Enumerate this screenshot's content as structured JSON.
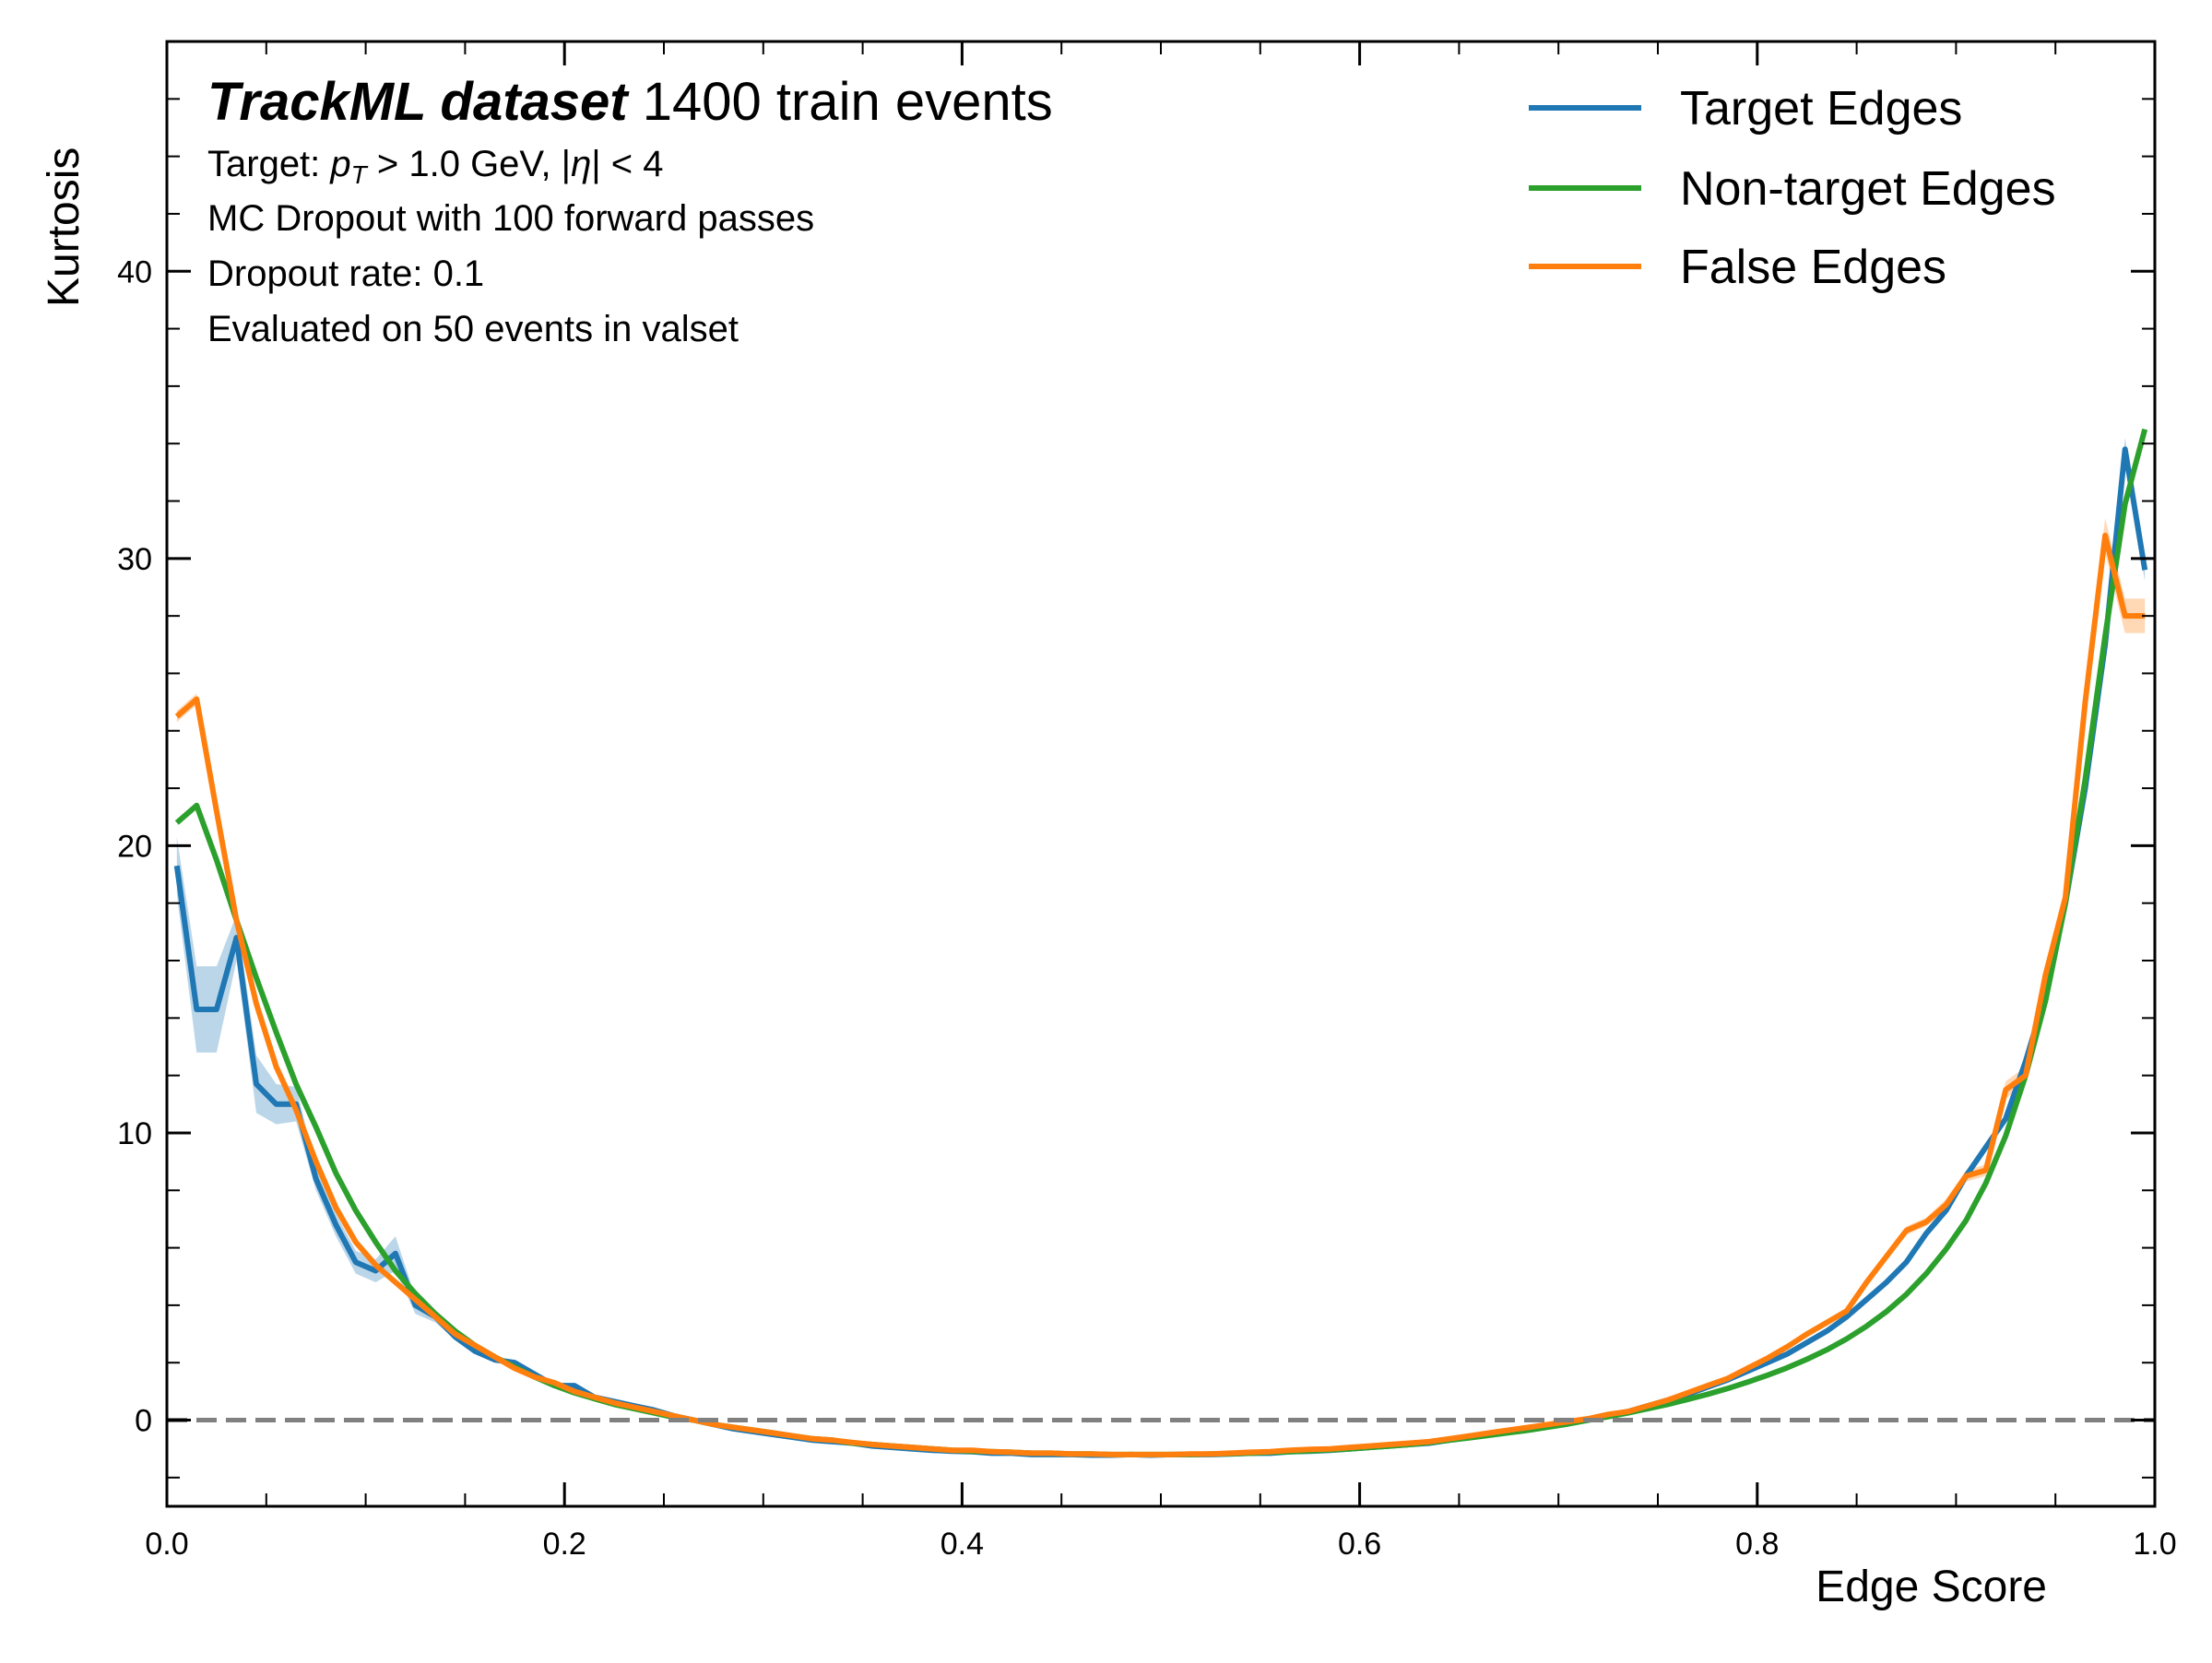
{
  "chart_data": {
    "type": "line",
    "xlabel": "Edge Score",
    "ylabel": "Kurtosis",
    "xlim": [
      0.0,
      1.0
    ],
    "ylim": [
      -3,
      48
    ],
    "x_ticks": [
      "0.0",
      "0.2",
      "0.4",
      "0.6",
      "0.8",
      "1.0"
    ],
    "x_tick_values": [
      0.0,
      0.2,
      0.4,
      0.6,
      0.8,
      1.0
    ],
    "y_ticks": [
      "0",
      "10",
      "20",
      "30",
      "40"
    ],
    "y_tick_values": [
      0,
      10,
      20,
      30,
      40
    ],
    "grid": false,
    "legend_position": "top-right",
    "annotation": {
      "title_bold": "TrackML dataset",
      "title_rest": " 1400 train events",
      "line1_prefix": "Target: ",
      "line1_p": "p",
      "line1_sub": "T",
      "line1_rest": " > 1.0 GeV, |",
      "line1_eta": "η",
      "line1_end": "| < 4",
      "line2": "MC Dropout with 100 forward passes",
      "line3": "Dropout rate: 0.1",
      "line4": "Evaluated on 50 events in valset"
    },
    "reference_line": {
      "y": 0,
      "style": "dashed",
      "color": "#808080"
    },
    "series": [
      {
        "name": "Target Edges",
        "color": "#1f77b4",
        "band_color": "#1f77b4",
        "x": [
          0.005,
          0.015,
          0.025,
          0.035,
          0.045,
          0.055,
          0.065,
          0.075,
          0.085,
          0.095,
          0.105,
          0.115,
          0.125,
          0.135,
          0.145,
          0.155,
          0.165,
          0.175,
          0.185,
          0.195,
          0.205,
          0.215,
          0.225,
          0.235,
          0.245,
          0.255,
          0.265,
          0.275,
          0.285,
          0.295,
          0.305,
          0.315,
          0.325,
          0.335,
          0.345,
          0.355,
          0.365,
          0.375,
          0.385,
          0.395,
          0.405,
          0.415,
          0.425,
          0.435,
          0.445,
          0.455,
          0.465,
          0.475,
          0.485,
          0.495,
          0.505,
          0.515,
          0.525,
          0.535,
          0.545,
          0.555,
          0.565,
          0.575,
          0.585,
          0.595,
          0.605,
          0.615,
          0.625,
          0.635,
          0.645,
          0.655,
          0.665,
          0.675,
          0.685,
          0.695,
          0.705,
          0.715,
          0.725,
          0.735,
          0.745,
          0.755,
          0.765,
          0.775,
          0.785,
          0.795,
          0.805,
          0.815,
          0.825,
          0.835,
          0.845,
          0.855,
          0.865,
          0.875,
          0.885,
          0.895,
          0.905,
          0.915,
          0.925,
          0.935,
          0.945,
          0.955,
          0.965,
          0.975,
          0.985,
          0.995
        ],
        "y": [
          19.3,
          14.3,
          14.3,
          16.8,
          11.7,
          11.0,
          11.0,
          8.4,
          6.8,
          5.5,
          5.2,
          5.8,
          4.0,
          3.6,
          2.9,
          2.4,
          2.1,
          2.0,
          1.6,
          1.2,
          1.2,
          0.8,
          0.65,
          0.5,
          0.35,
          0.15,
          0.0,
          -0.15,
          -0.3,
          -0.4,
          -0.5,
          -0.6,
          -0.7,
          -0.75,
          -0.8,
          -0.9,
          -0.95,
          -1.0,
          -1.05,
          -1.08,
          -1.1,
          -1.15,
          -1.15,
          -1.2,
          -1.2,
          -1.2,
          -1.22,
          -1.22,
          -1.2,
          -1.22,
          -1.2,
          -1.2,
          -1.2,
          -1.18,
          -1.15,
          -1.15,
          -1.1,
          -1.08,
          -1.05,
          -1.0,
          -0.95,
          -0.9,
          -0.85,
          -0.8,
          -0.7,
          -0.6,
          -0.5,
          -0.4,
          -0.3,
          -0.2,
          -0.1,
          0.0,
          0.15,
          0.3,
          0.5,
          0.7,
          0.9,
          1.15,
          1.4,
          1.7,
          2.0,
          2.3,
          2.7,
          3.1,
          3.6,
          4.2,
          4.8,
          5.5,
          6.5,
          7.3,
          8.5,
          9.5,
          10.5,
          12.5,
          14.8,
          18.0,
          22.0,
          27.0,
          33.8,
          29.6
        ],
        "err": [
          1.0,
          1.5,
          1.5,
          0.8,
          1.0,
          0.7,
          0.6,
          0.4,
          0.4,
          0.4,
          0.4,
          0.6,
          0.3,
          0.2,
          0.1,
          0.1,
          0.1,
          0.1,
          0.1,
          0.05,
          0.05,
          0.05,
          0.05,
          0.05,
          0.05,
          0.05,
          0.05,
          0.05,
          0.05,
          0.05,
          0.05,
          0.05,
          0.05,
          0.05,
          0.05,
          0.05,
          0.05,
          0.05,
          0.05,
          0.05,
          0.05,
          0.05,
          0.05,
          0.05,
          0.05,
          0.05,
          0.05,
          0.05,
          0.05,
          0.05,
          0.05,
          0.05,
          0.05,
          0.05,
          0.05,
          0.05,
          0.05,
          0.05,
          0.05,
          0.05,
          0.05,
          0.05,
          0.05,
          0.05,
          0.05,
          0.05,
          0.05,
          0.05,
          0.05,
          0.05,
          0.05,
          0.05,
          0.05,
          0.05,
          0.05,
          0.05,
          0.05,
          0.05,
          0.05,
          0.05,
          0.05,
          0.05,
          0.05,
          0.05,
          0.05,
          0.05,
          0.05,
          0.05,
          0.05,
          0.05,
          0.05,
          0.1,
          0.1,
          0.1,
          0.1,
          0.15,
          0.2,
          0.3,
          0.4,
          0.4
        ]
      },
      {
        "name": "Non-target Edges",
        "color": "#2ca02c",
        "x": [
          0.005,
          0.015,
          0.025,
          0.035,
          0.045,
          0.055,
          0.065,
          0.075,
          0.085,
          0.095,
          0.105,
          0.115,
          0.125,
          0.135,
          0.145,
          0.155,
          0.165,
          0.175,
          0.185,
          0.195,
          0.205,
          0.215,
          0.225,
          0.235,
          0.245,
          0.255,
          0.265,
          0.275,
          0.285,
          0.295,
          0.305,
          0.315,
          0.325,
          0.335,
          0.345,
          0.355,
          0.365,
          0.375,
          0.385,
          0.395,
          0.405,
          0.415,
          0.425,
          0.435,
          0.445,
          0.455,
          0.465,
          0.475,
          0.485,
          0.495,
          0.505,
          0.515,
          0.525,
          0.535,
          0.545,
          0.555,
          0.565,
          0.575,
          0.585,
          0.595,
          0.605,
          0.615,
          0.625,
          0.635,
          0.645,
          0.655,
          0.665,
          0.675,
          0.685,
          0.695,
          0.705,
          0.715,
          0.725,
          0.735,
          0.745,
          0.755,
          0.765,
          0.775,
          0.785,
          0.795,
          0.805,
          0.815,
          0.825,
          0.835,
          0.845,
          0.855,
          0.865,
          0.875,
          0.885,
          0.895,
          0.905,
          0.915,
          0.925,
          0.935,
          0.945,
          0.955,
          0.965,
          0.975,
          0.985,
          0.995
        ],
        "y": [
          20.8,
          21.4,
          19.5,
          17.4,
          15.4,
          13.5,
          11.7,
          10.2,
          8.6,
          7.3,
          6.2,
          5.2,
          4.4,
          3.7,
          3.1,
          2.6,
          2.2,
          1.85,
          1.5,
          1.2,
          0.95,
          0.75,
          0.55,
          0.4,
          0.25,
          0.1,
          0.0,
          -0.15,
          -0.25,
          -0.35,
          -0.45,
          -0.55,
          -0.65,
          -0.7,
          -0.8,
          -0.85,
          -0.9,
          -0.95,
          -1.0,
          -1.05,
          -1.08,
          -1.1,
          -1.12,
          -1.15,
          -1.15,
          -1.18,
          -1.18,
          -1.2,
          -1.2,
          -1.2,
          -1.2,
          -1.2,
          -1.18,
          -1.17,
          -1.15,
          -1.12,
          -1.1,
          -1.07,
          -1.04,
          -1.0,
          -0.95,
          -0.9,
          -0.85,
          -0.78,
          -0.7,
          -0.62,
          -0.53,
          -0.44,
          -0.35,
          -0.24,
          -0.13,
          0.0,
          0.12,
          0.25,
          0.4,
          0.55,
          0.72,
          0.9,
          1.1,
          1.32,
          1.56,
          1.82,
          2.12,
          2.45,
          2.83,
          3.27,
          3.78,
          4.38,
          5.1,
          5.95,
          6.95,
          8.25,
          9.9,
          12.0,
          14.6,
          18.0,
          22.3,
          27.3,
          31.9,
          34.5
        ]
      },
      {
        "name": "False Edges",
        "color": "#ff7f0e",
        "band_color": "#ff7f0e",
        "x": [
          0.005,
          0.015,
          0.025,
          0.035,
          0.045,
          0.055,
          0.065,
          0.075,
          0.085,
          0.095,
          0.105,
          0.115,
          0.125,
          0.135,
          0.145,
          0.155,
          0.165,
          0.175,
          0.185,
          0.195,
          0.205,
          0.215,
          0.225,
          0.235,
          0.245,
          0.255,
          0.265,
          0.275,
          0.285,
          0.295,
          0.305,
          0.315,
          0.325,
          0.335,
          0.345,
          0.355,
          0.365,
          0.375,
          0.385,
          0.395,
          0.405,
          0.415,
          0.425,
          0.435,
          0.445,
          0.455,
          0.465,
          0.475,
          0.485,
          0.495,
          0.505,
          0.515,
          0.525,
          0.535,
          0.545,
          0.555,
          0.565,
          0.575,
          0.585,
          0.595,
          0.605,
          0.615,
          0.625,
          0.635,
          0.645,
          0.655,
          0.665,
          0.675,
          0.685,
          0.695,
          0.705,
          0.715,
          0.725,
          0.735,
          0.745,
          0.755,
          0.765,
          0.775,
          0.785,
          0.795,
          0.805,
          0.815,
          0.825,
          0.835,
          0.845,
          0.855,
          0.865,
          0.875,
          0.885,
          0.895,
          0.905,
          0.915,
          0.925,
          0.935,
          0.945,
          0.955,
          0.965,
          0.975,
          0.985,
          0.995
        ],
        "y": [
          24.5,
          25.1,
          21.2,
          17.4,
          14.5,
          12.3,
          10.8,
          9.0,
          7.4,
          6.2,
          5.4,
          4.8,
          4.2,
          3.6,
          3.0,
          2.6,
          2.2,
          1.8,
          1.5,
          1.3,
          1.0,
          0.8,
          0.6,
          0.45,
          0.3,
          0.15,
          0.0,
          -0.15,
          -0.25,
          -0.35,
          -0.45,
          -0.55,
          -0.65,
          -0.7,
          -0.78,
          -0.85,
          -0.9,
          -0.95,
          -1.0,
          -1.05,
          -1.05,
          -1.1,
          -1.12,
          -1.15,
          -1.15,
          -1.18,
          -1.18,
          -1.2,
          -1.2,
          -1.2,
          -1.2,
          -1.18,
          -1.18,
          -1.15,
          -1.12,
          -1.1,
          -1.05,
          -1.02,
          -1.0,
          -0.95,
          -0.9,
          -0.85,
          -0.8,
          -0.75,
          -0.65,
          -0.55,
          -0.45,
          -0.35,
          -0.25,
          -0.15,
          -0.05,
          0.05,
          0.2,
          0.3,
          0.5,
          0.7,
          0.95,
          1.2,
          1.45,
          1.8,
          2.15,
          2.55,
          3.0,
          3.4,
          3.8,
          4.8,
          5.7,
          6.6,
          6.9,
          7.5,
          8.5,
          8.7,
          11.5,
          12.0,
          15.5,
          18.2,
          25.0,
          30.8,
          28.0,
          28.0
        ],
        "err": [
          0.2,
          0.2,
          0.2,
          0.2,
          0.2,
          0.1,
          0.1,
          0.1,
          0.1,
          0.1,
          0.1,
          0.1,
          0.05,
          0.05,
          0.05,
          0.05,
          0.05,
          0.05,
          0.05,
          0.05,
          0.05,
          0.05,
          0.05,
          0.05,
          0.05,
          0.05,
          0.05,
          0.05,
          0.05,
          0.05,
          0.05,
          0.05,
          0.05,
          0.05,
          0.05,
          0.05,
          0.05,
          0.05,
          0.05,
          0.05,
          0.05,
          0.05,
          0.05,
          0.05,
          0.05,
          0.05,
          0.05,
          0.05,
          0.05,
          0.05,
          0.05,
          0.05,
          0.05,
          0.05,
          0.05,
          0.05,
          0.05,
          0.05,
          0.05,
          0.05,
          0.05,
          0.05,
          0.05,
          0.05,
          0.05,
          0.05,
          0.05,
          0.05,
          0.05,
          0.05,
          0.05,
          0.05,
          0.05,
          0.05,
          0.05,
          0.05,
          0.05,
          0.05,
          0.05,
          0.1,
          0.1,
          0.1,
          0.1,
          0.1,
          0.1,
          0.1,
          0.15,
          0.15,
          0.15,
          0.2,
          0.2,
          0.2,
          0.3,
          0.3,
          0.3,
          0.4,
          0.5,
          0.6,
          0.6,
          0.6
        ]
      }
    ]
  }
}
